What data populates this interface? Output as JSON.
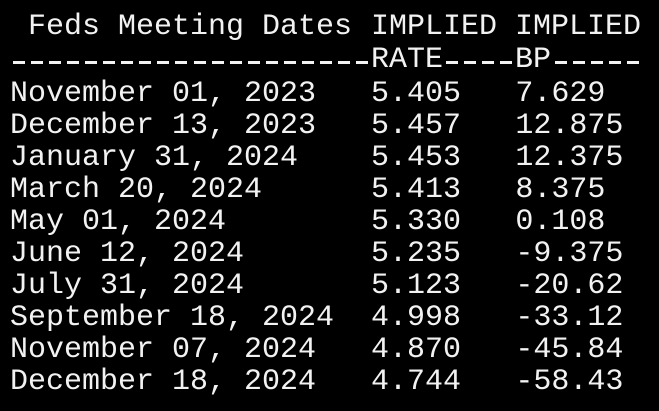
{
  "header": {
    "title": "Feds Meeting Dates",
    "rate_top": "IMPLIED",
    "bp_top": "IMPLIED",
    "rate_bottom": "RATE",
    "bp_bottom": "BP"
  },
  "table": {
    "rows": [
      [
        "November 01, 2023",
        "5.405",
        "7.629"
      ],
      [
        "December 13, 2023",
        "5.457",
        "12.875"
      ],
      [
        "January 31, 2024",
        "5.453",
        "12.375"
      ],
      [
        "March 20, 2024",
        "5.413",
        "8.375"
      ],
      [
        "May 01, 2024",
        "5.330",
        "0.108"
      ],
      [
        "June 12, 2024",
        "5.235",
        "-9.375"
      ],
      [
        "July 31, 2024",
        "5.123",
        "-20.62"
      ],
      [
        "September 18, 2024",
        "4.998",
        "-33.12"
      ],
      [
        "November 07, 2024",
        "4.870",
        "-45.84"
      ],
      [
        "December 18, 2024",
        "4.744",
        "-58.43"
      ]
    ]
  }
}
